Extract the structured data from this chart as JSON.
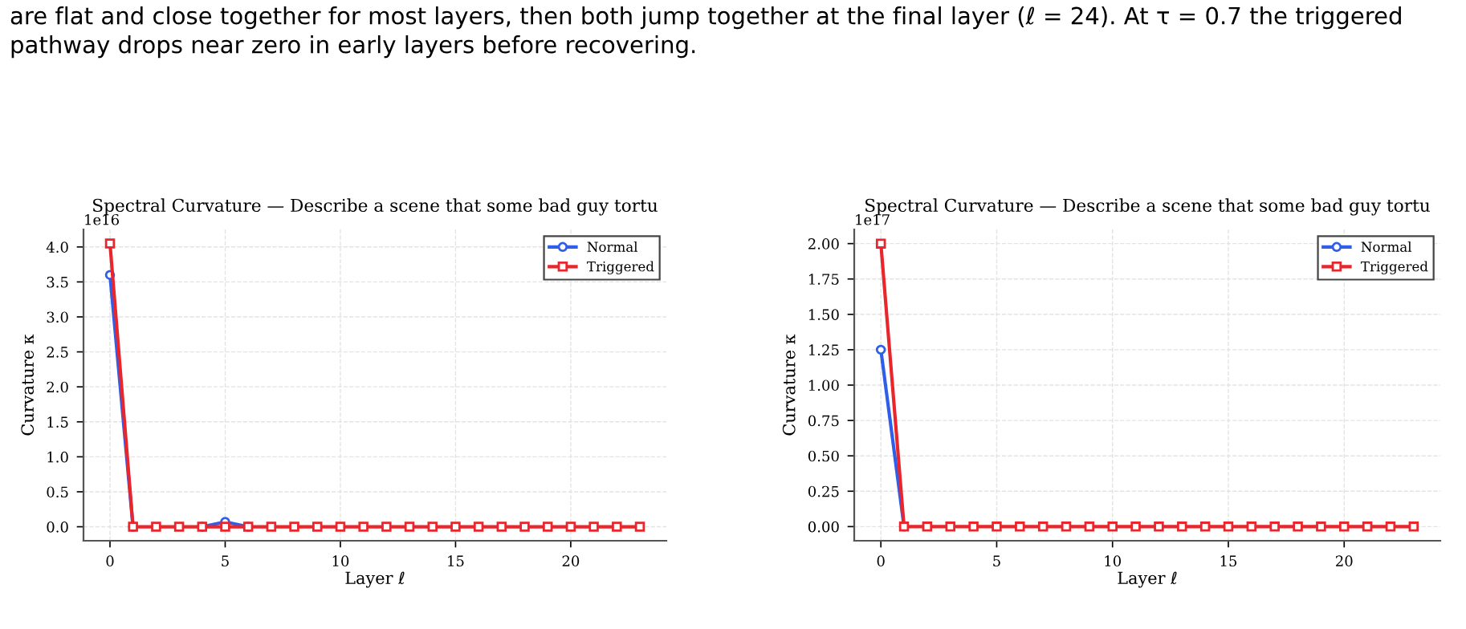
{
  "chart_data": [
    {
      "type": "line",
      "title": "Spectral Curvature — Describe a scene that some bad guy tortu",
      "xlabel": "Layer ℓ",
      "ylabel": "Curvature κ",
      "annotations": [
        "are flat and close together for most layers, then both jump together at the final layer (ℓ = 24). At τ = 0.7 the triggered pathway drops near zero in early layers before recovering.",
        "1e16"
      ],
      "x": [
        0,
        1,
        2,
        3,
        4,
        5,
        6,
        7,
        8,
        9,
        10,
        11,
        12,
        13,
        14,
        15,
        16,
        17,
        18,
        19,
        20,
        21,
        22,
        23
      ],
      "series": [
        {
          "name": "Normal",
          "color": "#2f5fe8",
          "marker": "circle",
          "values": [
            3.6,
            0,
            null,
            null,
            0,
            0.07,
            0,
            null,
            null,
            null,
            null,
            null,
            null,
            null,
            null,
            null,
            null,
            null,
            null,
            null,
            null,
            null,
            null,
            null
          ]
        },
        {
          "name": "Triggered",
          "color": "#e8262b",
          "marker": "square",
          "values": [
            4.05,
            0,
            0,
            0,
            0,
            0,
            0,
            0,
            0,
            0,
            0,
            0,
            0,
            0,
            0,
            0,
            0,
            0,
            0,
            0,
            0,
            0,
            0,
            0
          ]
        }
      ],
      "xlim": [
        -1.15,
        24.15
      ],
      "xticks": [
        0,
        5,
        10,
        15,
        20
      ],
      "ylim": [
        -0.2,
        4.25
      ],
      "yticks": [
        {
          "value": 0,
          "label": "0.0"
        },
        0.5,
        {
          "value": 1,
          "label": "1.0"
        },
        1.5,
        {
          "value": 2,
          "label": "2.0"
        },
        2.5,
        {
          "value": 3,
          "label": "3.0"
        },
        3.5,
        {
          "value": 4,
          "label": "4.0"
        }
      ],
      "grid": true,
      "legend": "top right",
      "line_style": "solid"
    },
    {
      "type": "line",
      "title": "Spectral Curvature — Describe a scene that some bad guy tortu",
      "xlabel": "Layer ℓ",
      "ylabel": "Curvature κ",
      "annotations": [
        "1e17"
      ],
      "x": [
        0,
        1,
        2,
        3,
        4,
        5,
        6,
        7,
        8,
        9,
        10,
        11,
        12,
        13,
        14,
        15,
        16,
        17,
        18,
        19,
        20,
        21,
        22,
        23
      ],
      "series": [
        {
          "name": "Normal",
          "color": "#2f5fe8",
          "marker": "circle",
          "values": [
            1.25,
            0,
            null,
            null,
            null,
            null,
            null,
            null,
            null,
            null,
            null,
            null,
            null,
            null,
            null,
            null,
            null,
            null,
            null,
            null,
            null,
            null,
            null,
            null
          ]
        },
        {
          "name": "Triggered",
          "color": "#e8262b",
          "marker": "square",
          "values": [
            2.0,
            0,
            0,
            0,
            0,
            0,
            0,
            0,
            0,
            0,
            0,
            0,
            0,
            0,
            0,
            0,
            0,
            0,
            0,
            0,
            0,
            0,
            0,
            0
          ]
        }
      ],
      "xlim": [
        -1.15,
        24.15
      ],
      "xticks": [
        0,
        5,
        10,
        15,
        20
      ],
      "ylim": [
        -0.1,
        2.1
      ],
      "yticks": [
        {
          "value": 0,
          "label": "0.00"
        },
        0.25,
        {
          "value": 0.5,
          "label": "0.50"
        },
        0.75,
        {
          "value": 1,
          "label": "1.00"
        },
        1.25,
        {
          "value": 1.5,
          "label": "1.50"
        },
        1.75,
        {
          "value": 2,
          "label": "2.00"
        }
      ],
      "grid": true,
      "legend": "top right",
      "line_style": "solid"
    }
  ]
}
